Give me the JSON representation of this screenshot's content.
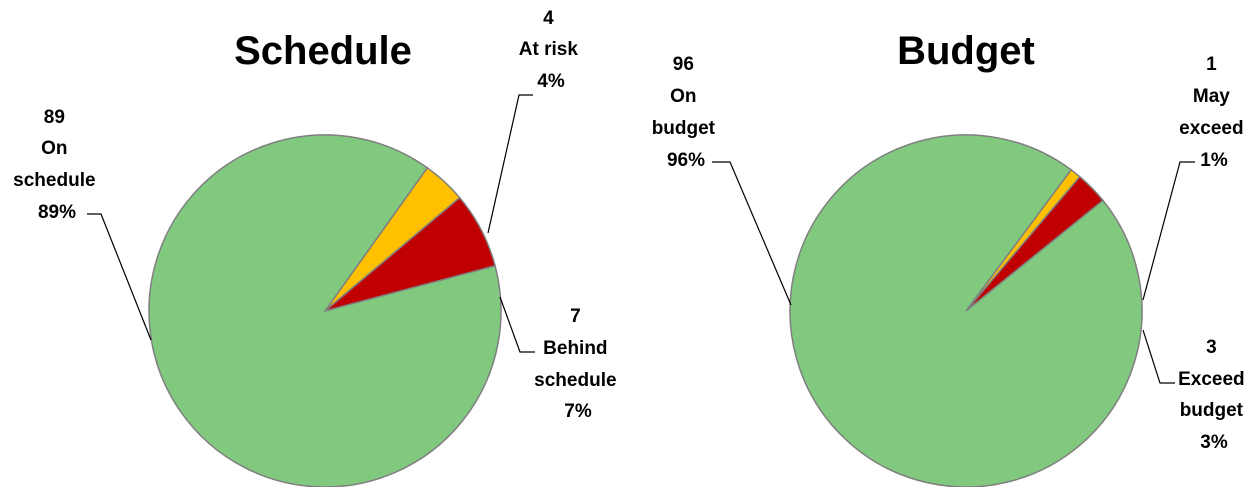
{
  "chart_data": [
    {
      "type": "pie",
      "title": "Schedule",
      "slices": [
        {
          "category": "On schedule",
          "count": "89",
          "name": "On",
          "name2": "schedule",
          "percent": "89%",
          "value": 89,
          "color": "#81c97f"
        },
        {
          "category": "At risk",
          "count": "4",
          "name": "At risk",
          "name2": "",
          "percent": "4%",
          "value": 4,
          "color": "#ffc000"
        },
        {
          "category": "Behind schedule",
          "count": "7",
          "name": "Behind",
          "name2": "schedule",
          "percent": "7%",
          "value": 7,
          "color": "#c00000"
        }
      ]
    },
    {
      "type": "pie",
      "title": "Budget",
      "slices": [
        {
          "category": "On budget",
          "count": "96",
          "name": "On",
          "name2": "budget",
          "percent": "96%",
          "value": 96,
          "color": "#81c97f"
        },
        {
          "category": "May exceed",
          "count": "1",
          "name": "May",
          "name2": "exceed",
          "percent": "1%",
          "value": 1,
          "color": "#ffc000"
        },
        {
          "category": "Exceed budget",
          "count": "3",
          "name": "Exceed",
          "name2": "budget",
          "percent": "3%",
          "value": 3,
          "color": "#c00000"
        }
      ]
    }
  ]
}
